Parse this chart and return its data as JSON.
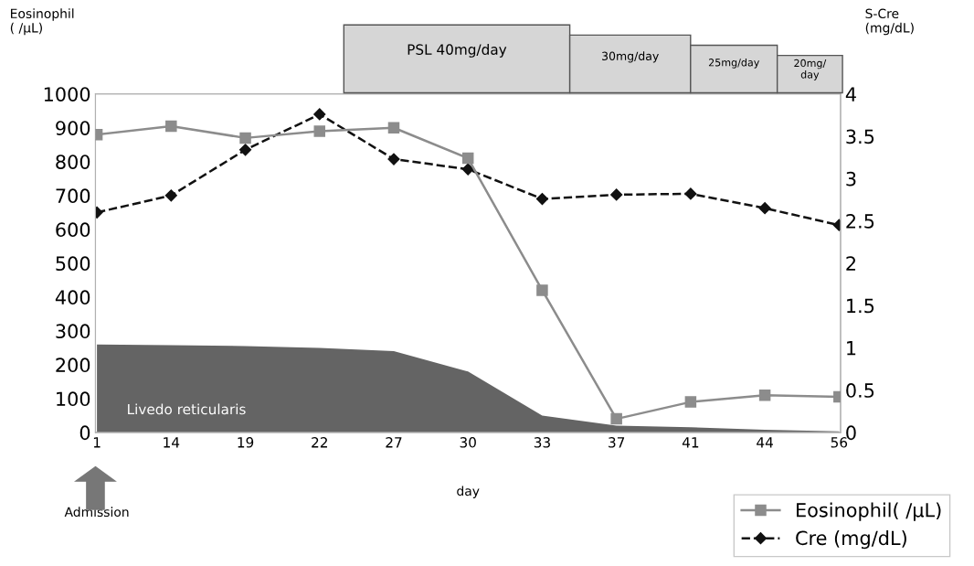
{
  "chart_data": {
    "type": "line",
    "xlabel": "day",
    "ylabel": "Eosinophil\n( /μL)",
    "y2label": "S-Cre\n(mg/dL)",
    "categories": [
      "1",
      "14",
      "19",
      "22",
      "27",
      "30",
      "33",
      "37",
      "41",
      "44",
      "56"
    ],
    "series": [
      {
        "type": "area",
        "name": "Livedo reticularis",
        "color": "#646464",
        "values": [
          260,
          258,
          255,
          250,
          240,
          180,
          50,
          20,
          15,
          8,
          3
        ]
      },
      {
        "name": "Eosinophil( /μL)",
        "color": "#8c8c8c",
        "marker": "square",
        "line_style": "solid",
        "values": [
          880,
          905,
          870,
          890,
          900,
          810,
          420,
          40,
          90,
          110,
          105
        ]
      },
      {
        "name": "Cre (mg/dL)",
        "color": "#111111",
        "marker": "diamond",
        "line_style": "dashed",
        "axis": "y2",
        "values": [
          2.6,
          2.8,
          3.34,
          3.76,
          3.23,
          3.11,
          2.76,
          2.81,
          2.82,
          2.65,
          2.45
        ]
      }
    ],
    "ylim": [
      0,
      1000
    ],
    "yticks": [
      0,
      100,
      200,
      300,
      400,
      500,
      600,
      700,
      800,
      900,
      1000
    ],
    "y2lim": [
      0,
      4
    ],
    "y2ticks": [
      0,
      {
        "value": 0.5,
        "label": "0.5"
      },
      1,
      {
        "value": 1.5,
        "label": "1.5"
      },
      2,
      {
        "value": 2.5,
        "label": "2.5"
      },
      3,
      {
        "value": 3.5,
        "label": "3.5"
      },
      4
    ],
    "annotations": [
      "PSL 40mg/day",
      "30mg/day",
      "25mg/day",
      "20mg/\nday",
      "Admission"
    ],
    "legend": "bottom right",
    "grid": false
  }
}
